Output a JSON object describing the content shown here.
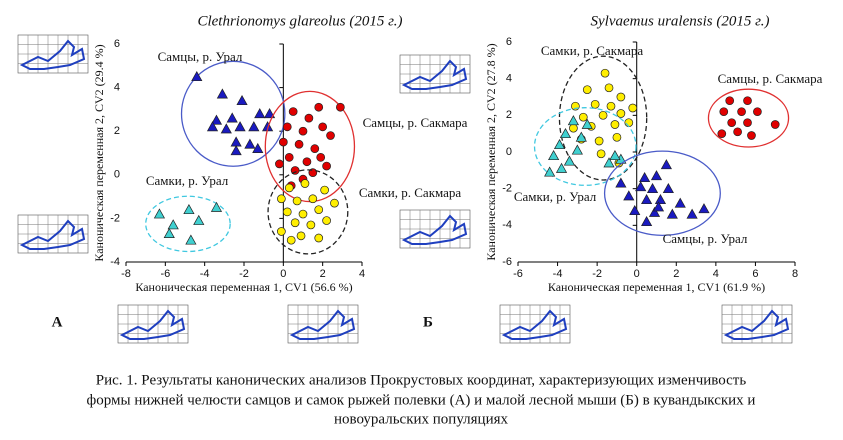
{
  "chart_data": [
    {
      "type": "scatter",
      "title": "Clethrionomys glareolus (2015 г.)",
      "panel_label": "А",
      "x_label": "Каноническая переменная 1, CV1 (56.6 %)",
      "y_label": "Каноническая переменная 2, CV2 (29.4 %)",
      "xlim": [
        -8,
        4
      ],
      "xticks": [
        -8,
        -6,
        -4,
        -2,
        0,
        2,
        4
      ],
      "ylim": [
        -4,
        6
      ],
      "yticks": [
        -4,
        -2,
        0,
        2,
        4,
        6
      ],
      "series": [
        {
          "name": "Самцы, р. Урал",
          "color": "#1a1ac0",
          "marker": "triangle",
          "ellipse": {
            "color": "#4a5bc8",
            "dashed": false
          },
          "x": [
            -4.4,
            -3.1,
            -2.1,
            -1.2,
            -0.7,
            -3.4,
            -2.6,
            -2.2,
            -1.5,
            -0.8,
            -3.6,
            -2.9,
            -2.4,
            -1.7,
            -2.4,
            -1.3
          ],
          "y": [
            4.5,
            3.7,
            3.4,
            2.8,
            2.8,
            2.5,
            2.6,
            2.2,
            2.2,
            2.2,
            2.2,
            2.1,
            1.5,
            1.4,
            1.1,
            1.2
          ]
        },
        {
          "name": "Самцы, р. Сакмара",
          "color": "#e00000",
          "marker": "circle",
          "ellipse": {
            "color": "#e03030",
            "dashed": false
          },
          "x": [
            0.5,
            1.3,
            1.8,
            2.9,
            0.2,
            1.0,
            2.0,
            0,
            0.8,
            1.6,
            2.4,
            0.3,
            1.2,
            1.9,
            0.6,
            1.5,
            2.2,
            -0.2,
            1.0,
            0.4
          ],
          "y": [
            2.9,
            2.6,
            3.1,
            3.1,
            2.2,
            2.0,
            2.2,
            1.5,
            1.4,
            1.2,
            1.8,
            0.8,
            0.6,
            0.8,
            0.2,
            0.1,
            0.4,
            0.5,
            -0.2,
            -0.5
          ]
        },
        {
          "name": "Самки, р. Сакмара",
          "color": "#ffee00",
          "marker": "circle",
          "ellipse": {
            "color": "#222222",
            "dashed": true
          },
          "x": [
            0.3,
            1.1,
            2.1,
            -0.1,
            0.7,
            1.5,
            2.6,
            0.2,
            1.0,
            1.8,
            0.6,
            1.4,
            2.2,
            -0.1,
            0.9,
            1.8,
            0.4
          ],
          "y": [
            -0.6,
            -0.4,
            -0.7,
            -1.1,
            -1.2,
            -1.1,
            -1.3,
            -1.7,
            -1.8,
            -1.6,
            -2.2,
            -2.3,
            -2.1,
            -2.6,
            -2.8,
            -2.9,
            -3.0
          ]
        },
        {
          "name": "Самки, р. Урал",
          "color": "#40d0d0",
          "marker": "triangle",
          "ellipse": {
            "color": "#40c8e0",
            "dashed": true
          },
          "x": [
            -6.3,
            -5.6,
            -4.8,
            -4.3,
            -3.4,
            -5.8,
            -4.7
          ],
          "y": [
            -1.8,
            -2.3,
            -1.6,
            -2.1,
            -1.5,
            -2.7,
            -3.0
          ]
        }
      ]
    },
    {
      "type": "scatter",
      "title": "Sylvaemus uralensis (2015 г.)",
      "panel_label": "Б",
      "x_label": "Каноническая переменная 1, CV1 (61.9 %)",
      "y_label": "Каноническая переменная 2, CV2 (27.8 %)",
      "xlim": [
        -6,
        8
      ],
      "xticks": [
        -6,
        -4,
        -2,
        0,
        2,
        4,
        6,
        8
      ],
      "ylim": [
        -6,
        6
      ],
      "yticks": [
        -6,
        -4,
        -2,
        0,
        2,
        4,
        6
      ],
      "series": [
        {
          "name": "Самцы, р. Сакмара",
          "color": "#e00000",
          "marker": "circle",
          "ellipse": {
            "color": "#e03030",
            "dashed": false
          },
          "x": [
            4.7,
            5.6,
            4.4,
            5.3,
            6.1,
            4.8,
            5.6,
            7.0,
            4.3,
            5.1,
            5.8
          ],
          "y": [
            2.8,
            2.8,
            2.2,
            2.2,
            2.2,
            1.6,
            1.6,
            1.5,
            1.0,
            1.1,
            0.9
          ]
        },
        {
          "name": "Самки, р. Сакмара",
          "color": "#ffee00",
          "marker": "circle",
          "ellipse": {
            "color": "#222222",
            "dashed": true
          },
          "x": [
            -1.6,
            -2.5,
            -1.4,
            -0.8,
            -3.1,
            -2.1,
            -1.3,
            -2.7,
            -1.7,
            -0.8,
            -0.2,
            -3.2,
            -2.3,
            -1.1,
            -0.4,
            -2.8,
            -1.9,
            -1.0,
            -1.8,
            -0.9
          ],
          "y": [
            4.3,
            3.4,
            3.5,
            3.0,
            2.5,
            2.6,
            2.5,
            1.9,
            2.0,
            2.1,
            2.4,
            1.3,
            1.4,
            1.5,
            1.6,
            0.7,
            0.6,
            0.8,
            -0.1,
            -0.6
          ]
        },
        {
          "name": "Самки, р. Урал",
          "color": "#40d0d0",
          "marker": "triangle",
          "ellipse": {
            "color": "#40c8e0",
            "dashed": true
          },
          "x": [
            -3.2,
            -2.5,
            -3.6,
            -2.8,
            -3.9,
            -3.0,
            -4.2,
            -3.4,
            -4.4,
            -3.8,
            -1.4,
            -0.8,
            -1.1
          ],
          "y": [
            1.7,
            1.5,
            1.0,
            0.8,
            0.4,
            0.1,
            -0.2,
            -0.5,
            -1.1,
            -0.9,
            -0.6,
            -0.4,
            -0.2
          ]
        },
        {
          "name": "Самцы, р. Урал",
          "color": "#1a1ac0",
          "marker": "triangle",
          "ellipse": {
            "color": "#4a5bc8",
            "dashed": false
          },
          "x": [
            1.5,
            0.4,
            1.0,
            -0.8,
            0.2,
            0.8,
            1.6,
            -0.4,
            0.5,
            1.2,
            2.2,
            -0.1,
            0.9,
            1.8,
            2.8,
            3.4,
            0.5,
            1.1
          ],
          "y": [
            -0.7,
            -1.4,
            -1.3,
            -1.7,
            -1.9,
            -2.0,
            -2.0,
            -2.4,
            -2.6,
            -2.6,
            -2.8,
            -3.2,
            -3.3,
            -3.4,
            -3.4,
            -3.1,
            -3.8,
            -3.0
          ]
        }
      ]
    }
  ],
  "caption": [
    "Рис. 1. Результаты канонических анализов Прокрустовых координат, характеризующих изменчивость",
    "формы нижней челюсти самцов и самок рыжей полевки (А) и малой лесной мыши (Б) в кувандыкских и",
    "новоуральских популяциях"
  ]
}
